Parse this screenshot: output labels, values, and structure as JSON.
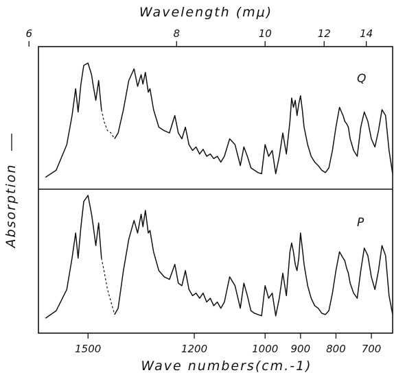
{
  "chart_data": {
    "type": "line",
    "top_axis": {
      "label": "Wavelength (mμ)",
      "ticks": [
        6,
        8,
        10,
        12,
        14
      ]
    },
    "bottom_axis": {
      "label": "Wave numbers(cm.-1)",
      "ticks": [
        1500,
        1200,
        1000,
        900,
        800,
        700
      ],
      "xlim": [
        1640,
        640
      ]
    },
    "ylabel": "Absorption",
    "grid": false,
    "panels": [
      {
        "name": "Q",
        "series": [
          {
            "style": "solid",
            "x": [
              1620,
              1590,
              1560,
              1545,
              1535,
              1528,
              1520,
              1512,
              1500,
              1490,
              1485,
              1478,
              1470,
              1462
            ],
            "y": [
              0.02,
              0.08,
              0.3,
              0.55,
              0.78,
              0.58,
              0.82,
              0.98,
              1.0,
              0.9,
              0.8,
              0.68,
              0.85,
              0.6
            ]
          },
          {
            "style": "dashed",
            "x": [
              1462,
              1455,
              1445,
              1435,
              1425
            ],
            "y": [
              0.6,
              0.5,
              0.42,
              0.4,
              0.35
            ]
          },
          {
            "style": "solid",
            "x": [
              1425,
              1415,
              1400,
              1385,
              1370,
              1360,
              1350,
              1345,
              1338,
              1330,
              1325,
              1315,
              1300,
              1285,
              1270,
              1255,
              1245,
              1235,
              1225,
              1215,
              1205,
              1195,
              1185,
              1175,
              1165,
              1155,
              1145,
              1135,
              1125,
              1115,
              1100,
              1085,
              1070,
              1060,
              1050,
              1040,
              1030,
              1020,
              1010,
              1000,
              990,
              980,
              970,
              960,
              950,
              940,
              930,
              925,
              920,
              915,
              910,
              905,
              900,
              895,
              890,
              880,
              870,
              860,
              850,
              840,
              830,
              820,
              810,
              800,
              790,
              780,
              775,
              770,
              765,
              760,
              750,
              740,
              730,
              720,
              710,
              700,
              690,
              680,
              670,
              660,
              650,
              640
            ],
            "y": [
              0.35,
              0.4,
              0.6,
              0.85,
              0.95,
              0.8,
              0.9,
              0.82,
              0.92,
              0.75,
              0.78,
              0.6,
              0.45,
              0.42,
              0.4,
              0.55,
              0.4,
              0.35,
              0.45,
              0.3,
              0.25,
              0.28,
              0.22,
              0.26,
              0.2,
              0.22,
              0.18,
              0.2,
              0.15,
              0.2,
              0.35,
              0.3,
              0.12,
              0.28,
              0.2,
              0.1,
              0.08,
              0.06,
              0.05,
              0.3,
              0.2,
              0.25,
              0.05,
              0.2,
              0.4,
              0.22,
              0.5,
              0.7,
              0.62,
              0.68,
              0.55,
              0.65,
              0.72,
              0.6,
              0.45,
              0.3,
              0.2,
              0.15,
              0.12,
              0.08,
              0.06,
              0.1,
              0.25,
              0.45,
              0.62,
              0.55,
              0.5,
              0.48,
              0.45,
              0.35,
              0.25,
              0.2,
              0.45,
              0.58,
              0.5,
              0.35,
              0.28,
              0.42,
              0.6,
              0.55,
              0.25,
              0.05
            ]
          }
        ]
      },
      {
        "name": "P",
        "series": [
          {
            "style": "solid",
            "x": [
              1620,
              1590,
              1560,
              1545,
              1535,
              1528,
              1520,
              1512,
              1500,
              1490,
              1485,
              1478,
              1470,
              1462
            ],
            "y": [
              0.02,
              0.08,
              0.25,
              0.5,
              0.7,
              0.5,
              0.75,
              0.95,
              1.0,
              0.85,
              0.75,
              0.6,
              0.78,
              0.5
            ]
          },
          {
            "style": "dashed",
            "x": [
              1462,
              1455,
              1445,
              1435,
              1425
            ],
            "y": [
              0.5,
              0.4,
              0.25,
              0.15,
              0.05
            ]
          },
          {
            "style": "solid",
            "x": [
              1425,
              1415,
              1400,
              1385,
              1370,
              1360,
              1350,
              1345,
              1338,
              1330,
              1325,
              1315,
              1300,
              1285,
              1270,
              1255,
              1245,
              1235,
              1225,
              1215,
              1205,
              1195,
              1185,
              1175,
              1165,
              1155,
              1145,
              1135,
              1125,
              1115,
              1100,
              1085,
              1070,
              1060,
              1050,
              1040,
              1030,
              1020,
              1010,
              1000,
              990,
              980,
              970,
              960,
              950,
              940,
              930,
              925,
              920,
              915,
              910,
              905,
              900,
              895,
              890,
              880,
              870,
              860,
              850,
              840,
              830,
              820,
              810,
              800,
              790,
              780,
              775,
              770,
              765,
              760,
              750,
              740,
              730,
              720,
              710,
              700,
              690,
              680,
              670,
              660,
              650,
              640
            ],
            "y": [
              0.05,
              0.1,
              0.4,
              0.65,
              0.8,
              0.7,
              0.85,
              0.75,
              0.88,
              0.7,
              0.72,
              0.55,
              0.4,
              0.35,
              0.33,
              0.45,
              0.3,
              0.28,
              0.4,
              0.25,
              0.2,
              0.22,
              0.18,
              0.22,
              0.15,
              0.18,
              0.12,
              0.15,
              0.1,
              0.15,
              0.35,
              0.28,
              0.1,
              0.3,
              0.2,
              0.08,
              0.06,
              0.05,
              0.04,
              0.28,
              0.18,
              0.22,
              0.04,
              0.18,
              0.38,
              0.2,
              0.55,
              0.62,
              0.55,
              0.45,
              0.4,
              0.5,
              0.7,
              0.58,
              0.45,
              0.28,
              0.18,
              0.12,
              0.1,
              0.06,
              0.05,
              0.08,
              0.22,
              0.4,
              0.55,
              0.5,
              0.48,
              0.42,
              0.38,
              0.3,
              0.22,
              0.18,
              0.4,
              0.58,
              0.52,
              0.35,
              0.25,
              0.4,
              0.6,
              0.52,
              0.2,
              0.05
            ]
          }
        ]
      }
    ]
  }
}
